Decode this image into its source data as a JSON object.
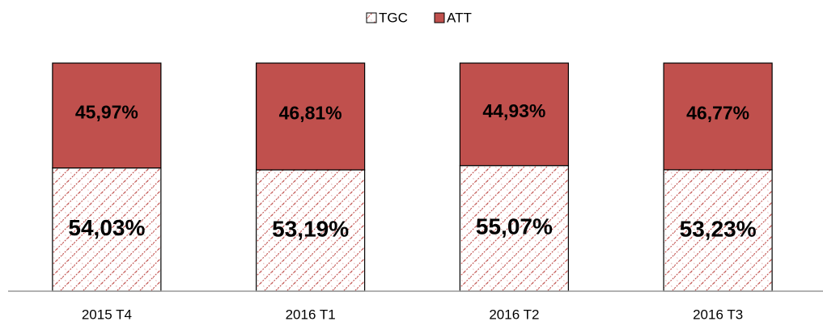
{
  "chart_data": {
    "type": "stacked_bar",
    "categories": [
      "2015 T4",
      "2016 T1",
      "2016 T2",
      "2016 T3"
    ],
    "series": [
      {
        "name": "TGC",
        "color": "#c0504d",
        "hatch": true,
        "values": [
          54.03,
          53.19,
          55.07,
          53.23
        ],
        "value_labels": [
          "54,03%",
          "53,19%",
          "55,07%",
          "53,23%"
        ]
      },
      {
        "name": "ATT",
        "color": "#c0504d",
        "hatch": false,
        "values": [
          45.97,
          46.81,
          44.93,
          46.77
        ],
        "value_labels": [
          "45,97%",
          "46,81%",
          "44,93%",
          "46,77%"
        ]
      }
    ],
    "legend": "top"
  }
}
